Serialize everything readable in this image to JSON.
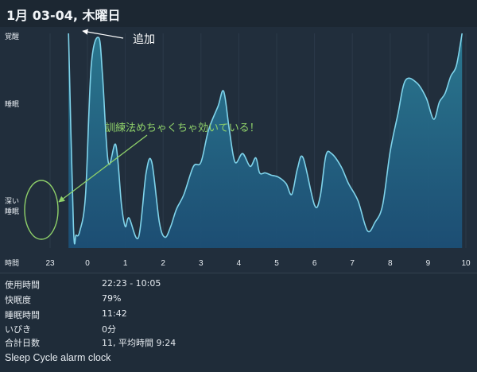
{
  "header": {
    "title": "1月 03-04, 木曜日"
  },
  "chart_data": {
    "type": "area",
    "y_levels": [
      "覚醒",
      "睡眠",
      "深い睡眠"
    ],
    "x_axis_title": "時間",
    "x_ticks": [
      "23",
      "0",
      "1",
      "2",
      "3",
      "4",
      "5",
      "6",
      "7",
      "8",
      "9",
      "10"
    ],
    "ylim": [
      0,
      100
    ],
    "series": [
      {
        "x": [
          -0.5,
          -0.37,
          -0.3,
          -0.2,
          -0.05,
          0.1,
          0.3,
          0.4,
          0.55,
          0.75,
          0.9,
          1.0,
          1.1,
          1.35,
          1.55,
          1.7,
          1.9,
          2.05,
          2.2,
          2.35,
          2.55,
          2.8,
          3.0,
          3.2,
          3.45,
          3.6,
          3.75,
          3.9,
          4.1,
          4.3,
          4.45,
          4.55,
          4.7,
          4.85,
          5.05,
          5.25,
          5.4,
          5.55,
          5.7,
          6.0,
          6.15,
          6.3,
          6.45,
          6.7,
          6.9,
          7.15,
          7.4,
          7.6,
          7.8,
          8.0,
          8.2,
          8.4,
          8.7,
          8.95,
          9.15,
          9.3,
          9.45,
          9.6,
          9.75,
          9.9
        ],
        "y": [
          100,
          10,
          6,
          8,
          25,
          85,
          98,
          80,
          40,
          48,
          20,
          10,
          14,
          5,
          35,
          40,
          12,
          5,
          10,
          18,
          25,
          38,
          40,
          55,
          66,
          73,
          55,
          40,
          44,
          38,
          42,
          35,
          35,
          34,
          33,
          30,
          25,
          37,
          42,
          20,
          24,
          43,
          44,
          38,
          30,
          22,
          8,
          12,
          20,
          45,
          62,
          78,
          77,
          70,
          60,
          68,
          72,
          80,
          85,
          100
        ]
      }
    ],
    "annotations": [
      {
        "text": "追加",
        "target": "覚醒"
      },
      {
        "text": "訓練法めちゃくちゃ効いている！",
        "target": "深い睡眠"
      }
    ],
    "colors": {
      "line": "#7fd3ea",
      "fill_top": "#2b7b93",
      "fill_bottom": "#1c4f76",
      "annotation_green": "#8fd16a"
    }
  },
  "stats": [
    {
      "label": "使用時間",
      "value": "22:23 - 10:05"
    },
    {
      "label": "快眠度",
      "value": "79%"
    },
    {
      "label": "睡眠時間",
      "value": "11:42"
    },
    {
      "label": "いびき",
      "value": "0分"
    },
    {
      "label": "合計日数",
      "value": "11, 平均時間 9:24"
    }
  ],
  "footer": {
    "text": "Sleep Cycle alarm clock"
  }
}
